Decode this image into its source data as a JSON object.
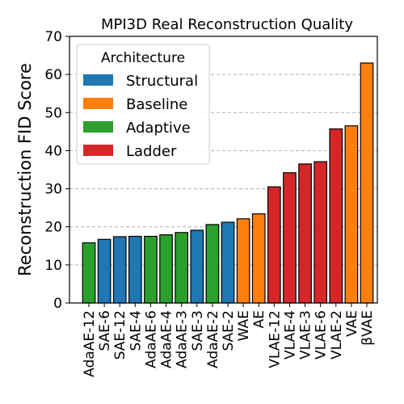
{
  "chart_data": {
    "type": "bar",
    "title": "MPI3D Real Reconstruction Quality",
    "xlabel": "",
    "ylabel": "Reconstruction FID Score",
    "ylim": [
      0,
      70
    ],
    "yticks": [
      0,
      10,
      20,
      30,
      40,
      50,
      60,
      70
    ],
    "grid": "y-dashed",
    "legend": {
      "title": "Architecture",
      "placement": "top-left",
      "entries": [
        {
          "name": "Structural",
          "color": "#1f77b4"
        },
        {
          "name": "Baseline",
          "color": "#ff7f0e"
        },
        {
          "name": "Adaptive",
          "color": "#2ca02c"
        },
        {
          "name": "Ladder",
          "color": "#d62728"
        }
      ]
    },
    "categories": [
      "AdaAE-12",
      "SAE-6",
      "SAE-12",
      "SAE-4",
      "AdaAE-6",
      "AdaAE-4",
      "AdaAE-3",
      "SAE-3",
      "AdaAE-2",
      "SAE-2",
      "WAE",
      "AE",
      "VLAE-12",
      "VLAE-4",
      "VLAE-3",
      "VLAE-6",
      "VLAE-2",
      "VAE",
      "βVAE"
    ],
    "values": [
      15.8,
      16.7,
      17.4,
      17.5,
      17.5,
      17.9,
      18.5,
      19.1,
      20.6,
      21.2,
      22.1,
      23.4,
      30.5,
      34.2,
      36.5,
      37.1,
      45.7,
      46.5,
      63.0
    ],
    "groups": [
      "Adaptive",
      "Structural",
      "Structural",
      "Structural",
      "Adaptive",
      "Adaptive",
      "Adaptive",
      "Structural",
      "Adaptive",
      "Structural",
      "Baseline",
      "Baseline",
      "Ladder",
      "Ladder",
      "Ladder",
      "Ladder",
      "Ladder",
      "Baseline",
      "Baseline"
    ]
  }
}
